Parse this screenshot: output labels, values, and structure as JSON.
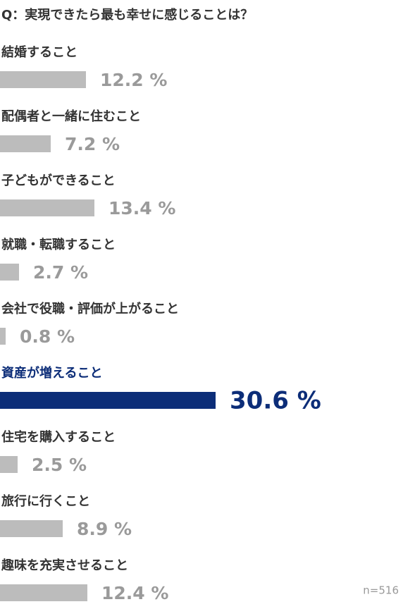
{
  "chart_data": {
    "type": "bar",
    "orientation": "horizontal",
    "title": "Q：実現できたら最も幸せに感じることは？",
    "categories": [
      "結婚すること",
      "配偶者と一緒に住むこと",
      "子どもができること",
      "就職・転職すること",
      "会社で役職・評価が上がること",
      "資産が増えること",
      "住宅を購入すること",
      "旅行に行くこと",
      "趣味を充実させること"
    ],
    "values": [
      12.2,
      7.2,
      13.4,
      2.7,
      0.8,
      30.6,
      2.5,
      8.9,
      12.4
    ],
    "value_labels": [
      "12.2 %",
      "7.2 %",
      "13.4 %",
      "2.7 %",
      "0.8 %",
      "30.6 %",
      "2.5 %",
      "8.9 %",
      "12.4 %"
    ],
    "colors": [
      "#bcbcbc",
      "#bcbcbc",
      "#bcbcbc",
      "#bcbcbc",
      "#bcbcbc",
      "#0c2d78",
      "#bcbcbc",
      "#bcbcbc",
      "#bcbcbc"
    ],
    "note": "n=516"
  }
}
